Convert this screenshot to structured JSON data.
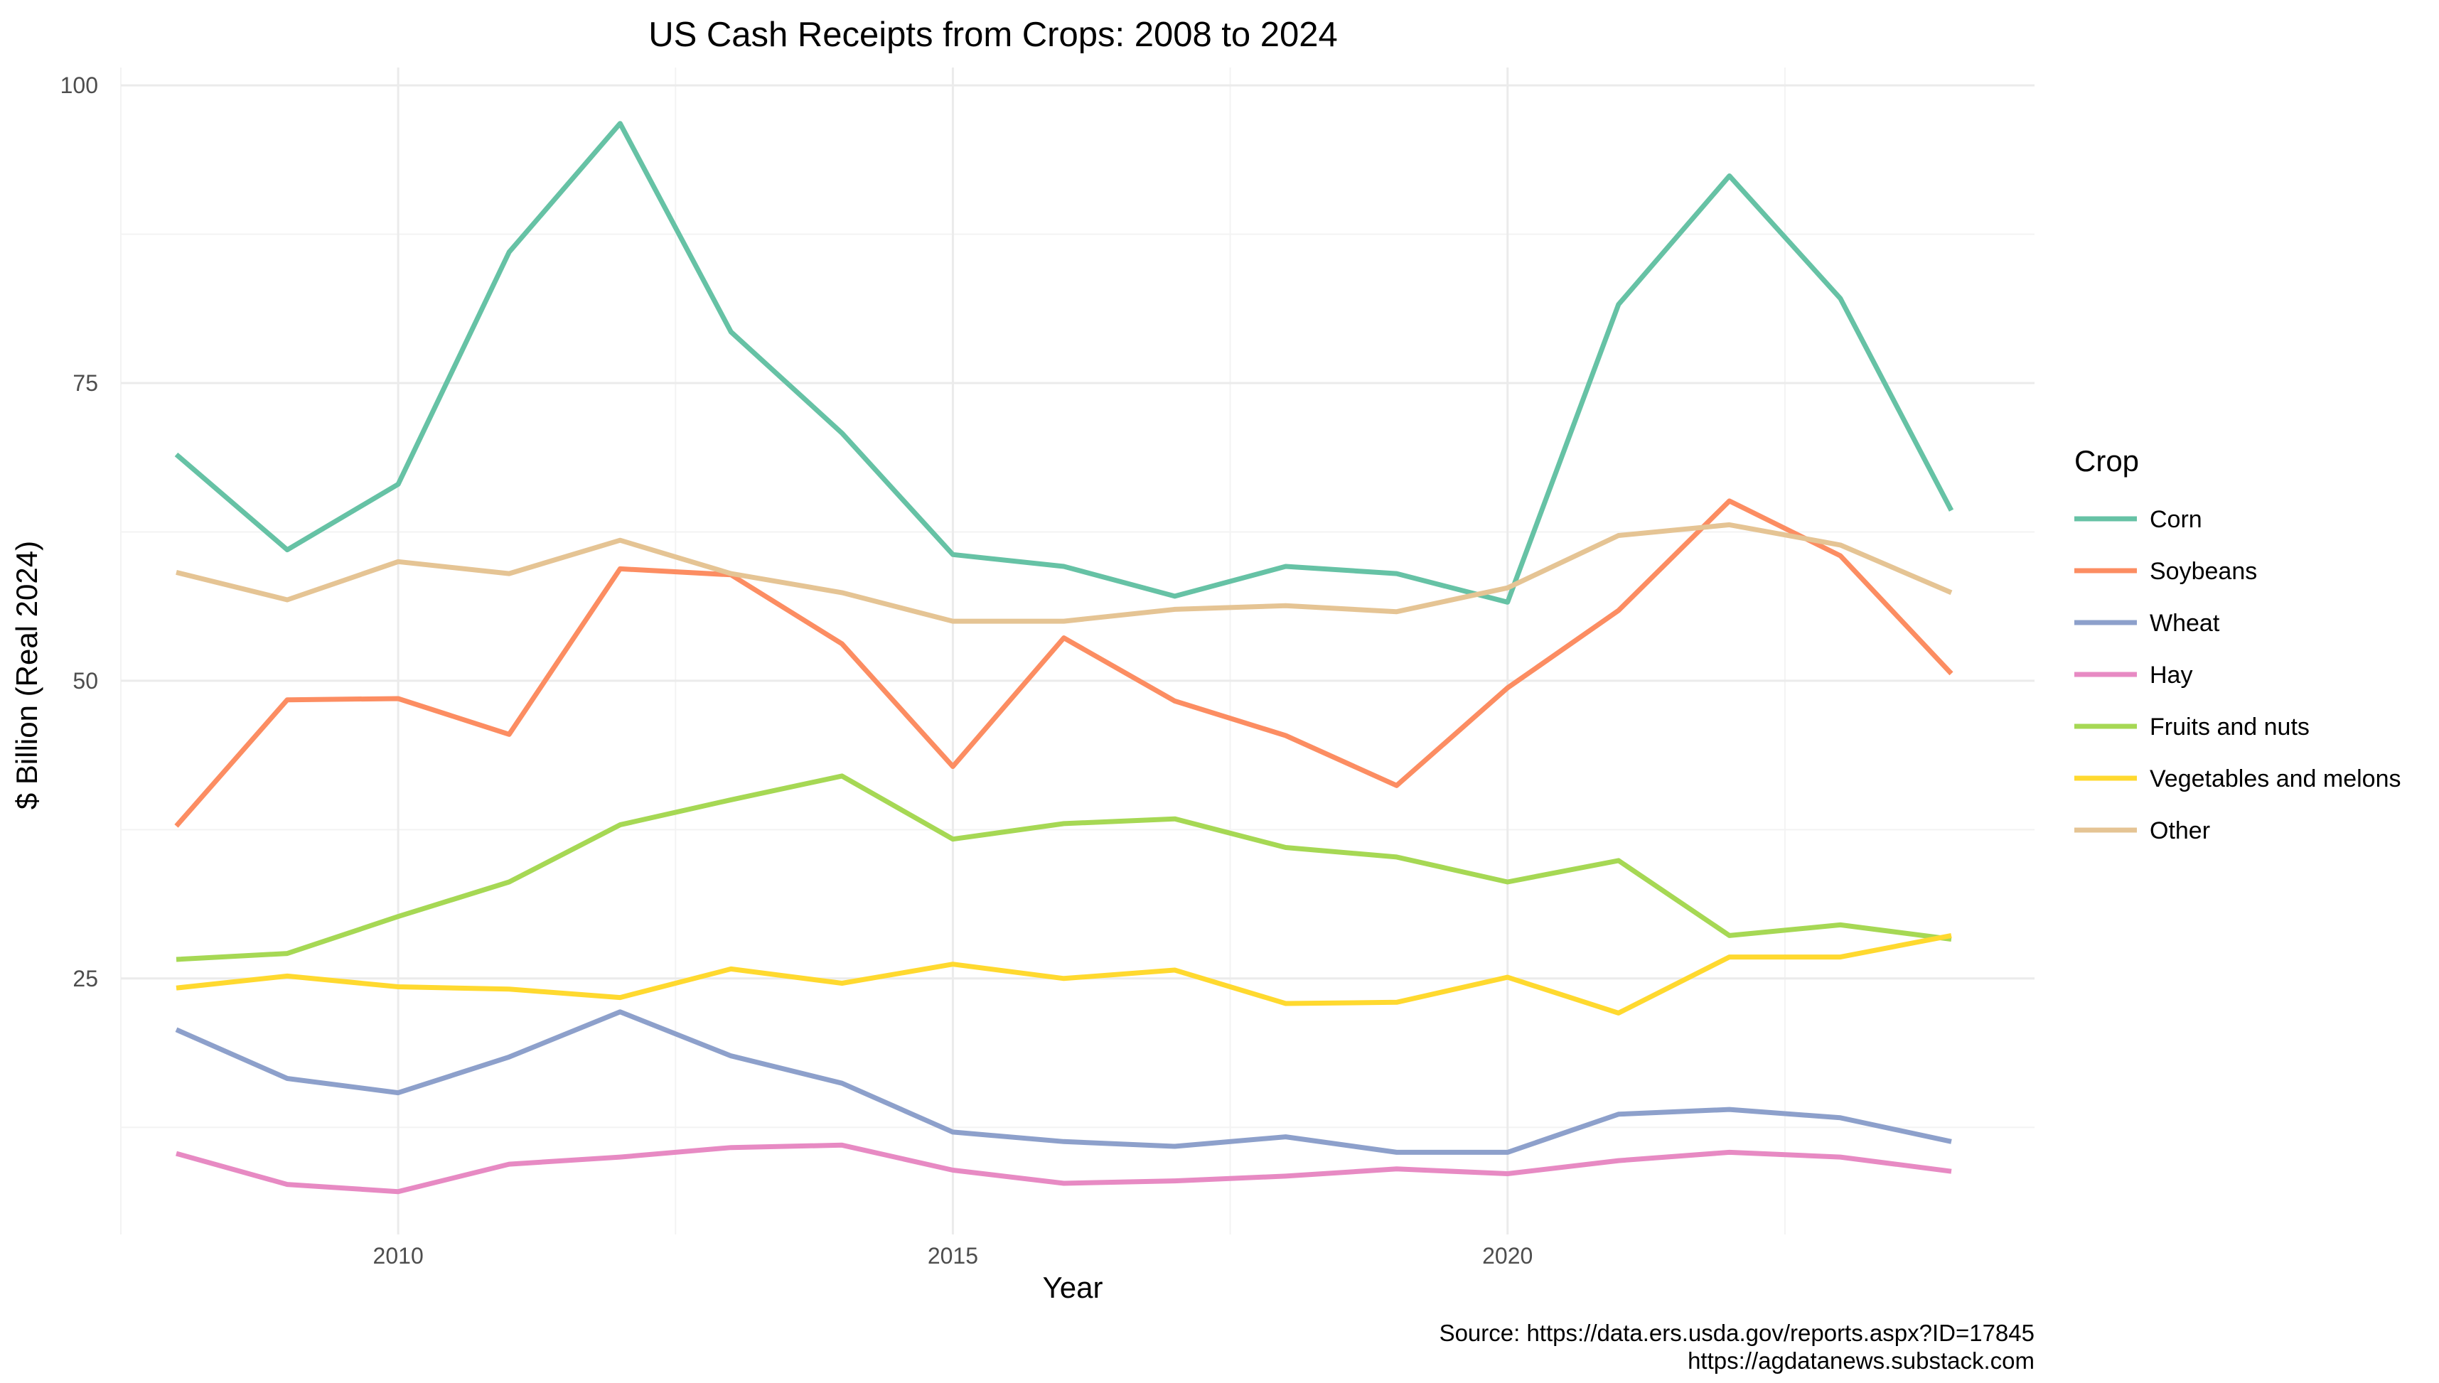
{
  "chart_data": {
    "type": "line",
    "title": "US Cash Receipts from Crops: 2008 to 2024",
    "xlabel": "Year",
    "ylabel": "$ Billion (Real 2024)",
    "x": [
      2008,
      2009,
      2010,
      2011,
      2012,
      2013,
      2014,
      2015,
      2016,
      2017,
      2018,
      2019,
      2020,
      2021,
      2022,
      2023,
      2024
    ],
    "xlim": [
      2007.5,
      2024.75
    ],
    "ylim": [
      3.5,
      101.5
    ],
    "x_ticks": [
      2010,
      2015,
      2020
    ],
    "x_tick_labels": [
      "2010",
      "2015",
      "2020"
    ],
    "y_ticks": [
      25,
      50,
      75,
      100
    ],
    "y_tick_labels": [
      "25",
      "50",
      "75",
      "100"
    ],
    "grid": true,
    "legend_title": "Crop",
    "legend_position": "right",
    "series": [
      {
        "name": "Corn",
        "color": "#66c2a5",
        "values": [
          69.0,
          61.0,
          66.5,
          86.0,
          96.8,
          79.3,
          70.8,
          60.6,
          59.6,
          57.1,
          59.6,
          59.0,
          56.6,
          81.6,
          92.4,
          82.1,
          64.3
        ]
      },
      {
        "name": "Soybeans",
        "color": "#fc8d62",
        "values": [
          37.8,
          48.4,
          48.5,
          45.5,
          59.4,
          58.9,
          53.1,
          42.8,
          53.6,
          48.3,
          45.4,
          41.2,
          49.4,
          55.9,
          65.1,
          60.5,
          50.6
        ]
      },
      {
        "name": "Wheat",
        "color": "#8da0cb",
        "values": [
          20.7,
          16.6,
          15.4,
          18.4,
          22.2,
          18.5,
          16.2,
          12.1,
          11.3,
          10.9,
          11.7,
          10.4,
          10.4,
          13.6,
          14.0,
          13.3,
          11.3
        ]
      },
      {
        "name": "Hay",
        "color": "#e78ac3",
        "values": [
          10.3,
          7.7,
          7.1,
          9.4,
          10.0,
          10.8,
          11.0,
          8.9,
          7.8,
          8.0,
          8.4,
          9.0,
          8.6,
          9.7,
          10.4,
          10.0,
          8.8
        ]
      },
      {
        "name": "Fruits and nuts",
        "color": "#a6d854",
        "values": [
          26.6,
          27.1,
          30.2,
          33.1,
          37.9,
          40.0,
          42.0,
          36.7,
          38.0,
          38.4,
          36.0,
          35.2,
          33.1,
          34.9,
          28.6,
          29.5,
          28.3
        ]
      },
      {
        "name": "Vegetables and melons",
        "color": "#ffd92f",
        "values": [
          24.2,
          25.2,
          24.3,
          24.1,
          23.4,
          25.8,
          24.6,
          26.2,
          25.0,
          25.7,
          22.9,
          23.0,
          25.1,
          22.1,
          26.8,
          26.8,
          28.6
        ]
      },
      {
        "name": "Other",
        "color": "#e5c494",
        "values": [
          59.1,
          56.8,
          60.0,
          59.0,
          61.8,
          59.0,
          57.4,
          55.0,
          55.0,
          56.0,
          56.3,
          55.8,
          57.8,
          62.2,
          63.1,
          61.4,
          57.4
        ]
      }
    ],
    "caption": [
      "Source: https://data.ers.usda.gov/reports.aspx?ID=17845",
      "https://agdatanews.substack.com"
    ]
  }
}
